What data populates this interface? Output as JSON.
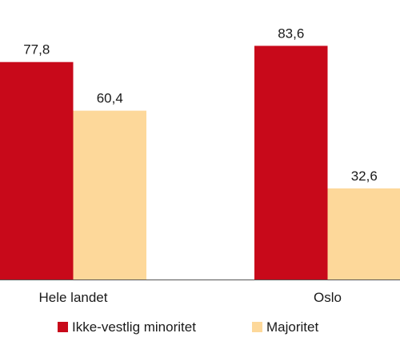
{
  "chart_data": {
    "type": "bar",
    "categories": [
      "Hele landet",
      "Oslo"
    ],
    "series": [
      {
        "name": "Ikke-vestlig minoritet",
        "values": [
          77.8,
          83.6
        ],
        "labels": [
          "77,8",
          "83,6"
        ]
      },
      {
        "name": "Majoritet",
        "values": [
          60.4,
          32.6
        ],
        "labels": [
          "60,4",
          "32,6"
        ]
      }
    ],
    "ylim": [
      0,
      100
    ],
    "grid": false,
    "legend_position": "bottom",
    "title": "",
    "xlabel": "",
    "ylabel": ""
  },
  "colors": {
    "Ikke-vestlig minoritet": "#c8091a",
    "Majoritet": "#fdd89a",
    "axis": "#555555"
  }
}
